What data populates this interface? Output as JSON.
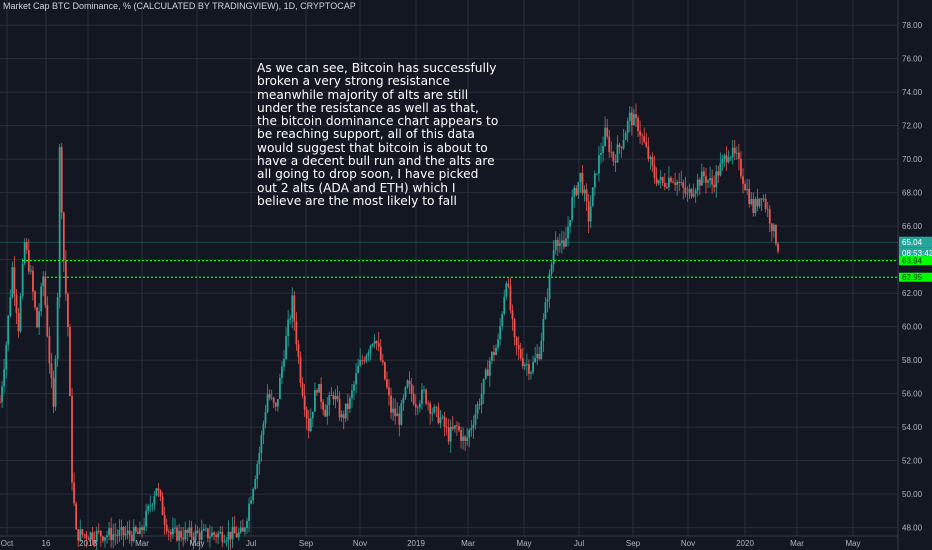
{
  "header": {
    "title": "Market Cap BTC Dominance, % (CALCULATED BY TRADINGVIEW), 1D, CRYPTOCAP"
  },
  "annotation": {
    "lines": [
      "As we can see, Bitcoin has successfully",
      "broken a very strong resistance",
      "meanwhile majority of alts are still",
      "under the resistance as well as that,",
      "the bitcoin dominance chart appears to",
      "be reaching support, all of this data",
      "would suggest that bitcoin is about to",
      "have a decent bull run and the alts are",
      "all going to drop soon, I have picked",
      "out 2 alts (ADA and ETH) which I",
      "believe are the most likely to fall"
    ]
  },
  "colors": {
    "background": "#131722",
    "up": "#26a69a",
    "down": "#ef5350",
    "level": "#00ff00",
    "grid": "#2a2e39"
  },
  "chart_data": {
    "type": "candlestick",
    "ylim": [
      47.5,
      79.5
    ],
    "y_ticks": [
      "48.00",
      "50.00",
      "52.00",
      "54.00",
      "56.00",
      "58.00",
      "60.00",
      "62.00",
      "64.00",
      "66.00",
      "68.00",
      "70.00",
      "72.00",
      "74.00",
      "76.00",
      "78.00"
    ],
    "x_ticks": [
      "Oct",
      "16",
      "2018",
      "Mar",
      "May",
      "Jul",
      "Sep",
      "Nov",
      "2019",
      "Mar",
      "May",
      "Jul",
      "Sep",
      "Nov",
      "2020",
      "Mar",
      "May"
    ],
    "horizontal_levels": [
      {
        "value": 63.94,
        "label": "63.94"
      },
      {
        "value": 62.95,
        "label": "62.95"
      }
    ],
    "current_price": {
      "value": 65.04,
      "label": "65.04",
      "countdown": "08:53:42"
    },
    "path": [
      {
        "i": 0,
        "v": 55.5
      },
      {
        "i": 3,
        "v": 59
      },
      {
        "i": 6,
        "v": 63.5
      },
      {
        "i": 9,
        "v": 60
      },
      {
        "i": 12,
        "v": 65
      },
      {
        "i": 15,
        "v": 63
      },
      {
        "i": 18,
        "v": 60
      },
      {
        "i": 21,
        "v": 63
      },
      {
        "i": 24,
        "v": 58
      },
      {
        "i": 26,
        "v": 55
      },
      {
        "i": 28,
        "v": 62
      },
      {
        "i": 29,
        "v": 70.5
      },
      {
        "i": 31,
        "v": 64
      },
      {
        "i": 33,
        "v": 60
      },
      {
        "i": 35,
        "v": 51
      },
      {
        "i": 37,
        "v": 47.6
      },
      {
        "i": 68,
        "v": 47.6
      },
      {
        "i": 72,
        "v": 49
      },
      {
        "i": 76,
        "v": 50.5
      },
      {
        "i": 80,
        "v": 48.5
      },
      {
        "i": 83,
        "v": 47.6
      },
      {
        "i": 118,
        "v": 47.6
      },
      {
        "i": 122,
        "v": 50
      },
      {
        "i": 126,
        "v": 52.5
      },
      {
        "i": 130,
        "v": 56
      },
      {
        "i": 134,
        "v": 55
      },
      {
        "i": 138,
        "v": 58.5
      },
      {
        "i": 142,
        "v": 61.5
      },
      {
        "i": 146,
        "v": 57
      },
      {
        "i": 150,
        "v": 54
      },
      {
        "i": 154,
        "v": 56.5
      },
      {
        "i": 158,
        "v": 55
      },
      {
        "i": 162,
        "v": 56
      },
      {
        "i": 166,
        "v": 54.5
      },
      {
        "i": 170,
        "v": 55.5
      },
      {
        "i": 174,
        "v": 57.5
      },
      {
        "i": 178,
        "v": 58.5
      },
      {
        "i": 182,
        "v": 59.5
      },
      {
        "i": 186,
        "v": 57.5
      },
      {
        "i": 190,
        "v": 55
      },
      {
        "i": 194,
        "v": 54.5
      },
      {
        "i": 198,
        "v": 56.5
      },
      {
        "i": 202,
        "v": 55.5
      },
      {
        "i": 206,
        "v": 56
      },
      {
        "i": 210,
        "v": 55
      },
      {
        "i": 214,
        "v": 54.5
      },
      {
        "i": 218,
        "v": 53.5
      },
      {
        "i": 222,
        "v": 54
      },
      {
        "i": 226,
        "v": 53
      },
      {
        "i": 230,
        "v": 54.5
      },
      {
        "i": 234,
        "v": 56
      },
      {
        "i": 238,
        "v": 58
      },
      {
        "i": 242,
        "v": 59
      },
      {
        "i": 246,
        "v": 63
      },
      {
        "i": 250,
        "v": 59
      },
      {
        "i": 254,
        "v": 58
      },
      {
        "i": 258,
        "v": 57.5
      },
      {
        "i": 262,
        "v": 58.5
      },
      {
        "i": 266,
        "v": 62
      },
      {
        "i": 270,
        "v": 65.5
      },
      {
        "i": 274,
        "v": 64.5
      },
      {
        "i": 278,
        "v": 67.5
      },
      {
        "i": 282,
        "v": 69
      },
      {
        "i": 286,
        "v": 66.5
      },
      {
        "i": 290,
        "v": 69.5
      },
      {
        "i": 294,
        "v": 71.5
      },
      {
        "i": 298,
        "v": 70
      },
      {
        "i": 302,
        "v": 71
      },
      {
        "i": 306,
        "v": 72.5
      },
      {
        "i": 310,
        "v": 72
      },
      {
        "i": 314,
        "v": 70.5
      },
      {
        "i": 318,
        "v": 69
      },
      {
        "i": 322,
        "v": 68.5
      },
      {
        "i": 326,
        "v": 69
      },
      {
        "i": 330,
        "v": 68.5
      },
      {
        "i": 334,
        "v": 67.8
      },
      {
        "i": 338,
        "v": 68.5
      },
      {
        "i": 342,
        "v": 69
      },
      {
        "i": 346,
        "v": 68.5
      },
      {
        "i": 350,
        "v": 69.5
      },
      {
        "i": 354,
        "v": 70.5
      },
      {
        "i": 358,
        "v": 70
      },
      {
        "i": 362,
        "v": 68.5
      },
      {
        "i": 366,
        "v": 67
      },
      {
        "i": 370,
        "v": 68
      },
      {
        "i": 374,
        "v": 66.5
      },
      {
        "i": 378,
        "v": 64.8
      }
    ]
  }
}
